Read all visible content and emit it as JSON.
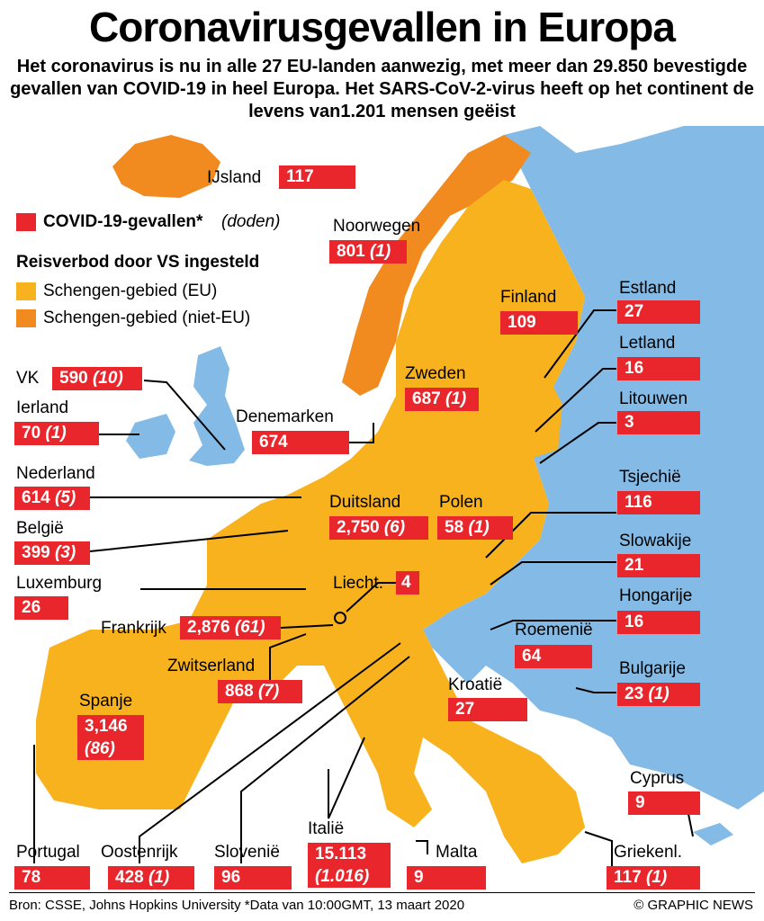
{
  "title": "Coronavirusgevallen in Europa",
  "subtitle": "Het coronavirus is nu in alle 27 EU-landen aanwezig, met meer dan 29.850 bevestigde gevallen van COVID-19 in heel Europa. Het SARS-CoV-2-virus heeft op het continent de levens van1.201 mensen geëist",
  "colors": {
    "cases_box": "#e8262b",
    "schengen_eu": "#f7b21e",
    "schengen_non_eu": "#f18a1f",
    "other": "#84bbe6"
  },
  "legend": {
    "cases_label": "COVID-19-gevallen*",
    "deaths_label": "(doden)",
    "travel_ban_heading": "Reisverbod door VS ingesteld",
    "schengen_eu": "Schengen-gebied (EU)",
    "schengen_non_eu": "Schengen-gebied (niet-EU)"
  },
  "countries": {
    "ijsland": {
      "name": "IJsland",
      "cases": "117",
      "deaths": ""
    },
    "noorwegen": {
      "name": "Noorwegen",
      "cases": "801",
      "deaths": "(1)"
    },
    "finland": {
      "name": "Finland",
      "cases": "109",
      "deaths": ""
    },
    "estland": {
      "name": "Estland",
      "cases": "27",
      "deaths": ""
    },
    "letland": {
      "name": "Letland",
      "cases": "16",
      "deaths": ""
    },
    "litouwen": {
      "name": "Litouwen",
      "cases": "3",
      "deaths": ""
    },
    "vk": {
      "name": "VK",
      "cases": "590",
      "deaths": "(10)"
    },
    "ierland": {
      "name": "Ierland",
      "cases": "70",
      "deaths": "(1)"
    },
    "zweden": {
      "name": "Zweden",
      "cases": "687",
      "deaths": "(1)"
    },
    "denemarken": {
      "name": "Denemarken",
      "cases": "674",
      "deaths": ""
    },
    "nederland": {
      "name": "Nederland",
      "cases": "614",
      "deaths": "(5)"
    },
    "duitsland": {
      "name": "Duitsland",
      "cases": "2,750",
      "deaths": "(6)"
    },
    "polen": {
      "name": "Polen",
      "cases": "58",
      "deaths": "(1)"
    },
    "tsjechie": {
      "name": "Tsjechië",
      "cases": "116",
      "deaths": ""
    },
    "belgie": {
      "name": "België",
      "cases": "399",
      "deaths": "(3)"
    },
    "slowakije": {
      "name": "Slowakije",
      "cases": "21",
      "deaths": ""
    },
    "luxemburg": {
      "name": "Luxemburg",
      "cases": "26",
      "deaths": ""
    },
    "liecht": {
      "name": "Liecht.",
      "cases": "4",
      "deaths": ""
    },
    "hongarije": {
      "name": "Hongarije",
      "cases": "16",
      "deaths": ""
    },
    "frankrijk": {
      "name": "Frankrijk",
      "cases": "2,876",
      "deaths": "(61)"
    },
    "roemenie": {
      "name": "Roemenië",
      "cases": "64",
      "deaths": ""
    },
    "zwitserland": {
      "name": "Zwitserland",
      "cases": "868",
      "deaths": "(7)"
    },
    "bulgarije": {
      "name": "Bulgarije",
      "cases": "23",
      "deaths": "(1)"
    },
    "spanje": {
      "name": "Spanje",
      "cases": "3,146",
      "deaths": "(86)"
    },
    "kroatie": {
      "name": "Kroatië",
      "cases": "27",
      "deaths": ""
    },
    "cyprus": {
      "name": "Cyprus",
      "cases": "9",
      "deaths": ""
    },
    "portugal": {
      "name": "Portugal",
      "cases": "78",
      "deaths": ""
    },
    "oostenrijk": {
      "name": "Oostenrijk",
      "cases": "428",
      "deaths": "(1)"
    },
    "slovenie": {
      "name": "Slovenië",
      "cases": "96",
      "deaths": ""
    },
    "italie": {
      "name": "Italië",
      "cases": "15.113",
      "deaths": "(1.016)"
    },
    "malta": {
      "name": "Malta",
      "cases": "9",
      "deaths": ""
    },
    "griekenland": {
      "name": "Griekenl.",
      "cases": "117",
      "deaths": "(1)"
    }
  },
  "source": "Bron: CSSE, Johns Hopkins University *Data van 10:00GMT, 13 maart 2020",
  "credit": "© GRAPHIC NEWS"
}
